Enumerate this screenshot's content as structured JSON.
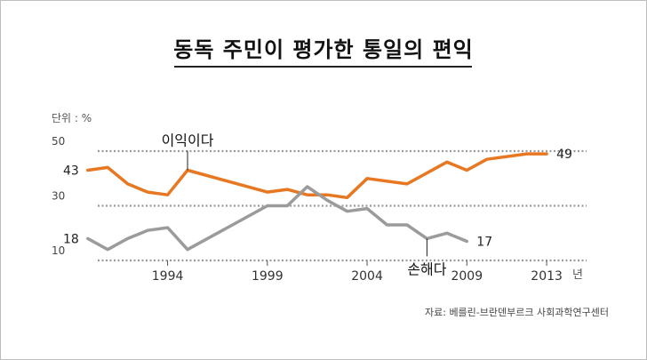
{
  "chart_data": {
    "type": "line",
    "title": "동독 주민이 평가한 통일의 편익",
    "unit_label": "단위 : %",
    "x_unit_label": "년",
    "source": "자료: 베를린-브란덴부르크 사회과학연구센터",
    "xlim": [
      1990.5,
      2015
    ],
    "ylim": [
      10,
      50
    ],
    "y_ticks": [
      {
        "value": 50,
        "label": "50"
      },
      {
        "value": 30,
        "label": "30"
      },
      {
        "value": 10,
        "label": "10"
      }
    ],
    "x_ticks": [
      {
        "value": 1994,
        "label": "1994"
      },
      {
        "value": 1999,
        "label": "1999"
      },
      {
        "value": 2004,
        "label": "2004"
      },
      {
        "value": 2009,
        "label": "2009"
      },
      {
        "value": 2013,
        "label": "2013"
      }
    ],
    "grid": true,
    "series": [
      {
        "name": "이익이다",
        "color": "#e87722",
        "points": [
          [
            1990,
            43
          ],
          [
            1991,
            44
          ],
          [
            1992,
            38
          ],
          [
            1993,
            35
          ],
          [
            1994,
            34
          ],
          [
            1995,
            43
          ],
          [
            1997,
            39
          ],
          [
            1999,
            35
          ],
          [
            2000,
            36
          ],
          [
            2001,
            34
          ],
          [
            2002,
            34
          ],
          [
            2003,
            33
          ],
          [
            2004,
            40
          ],
          [
            2006,
            38
          ],
          [
            2008,
            46
          ],
          [
            2009,
            43
          ],
          [
            2010,
            47
          ],
          [
            2012,
            49
          ],
          [
            2013,
            49
          ]
        ]
      },
      {
        "name": "손해다",
        "color": "#9b9b9b",
        "points": [
          [
            1990,
            18
          ],
          [
            1991,
            14
          ],
          [
            1992,
            18
          ],
          [
            1993,
            21
          ],
          [
            1994,
            22
          ],
          [
            1995,
            14
          ],
          [
            1997,
            22
          ],
          [
            1999,
            30
          ],
          [
            2000,
            30
          ],
          [
            2001,
            37
          ],
          [
            2002,
            32
          ],
          [
            2003,
            28
          ],
          [
            2004,
            29
          ],
          [
            2005,
            23
          ],
          [
            2006,
            23
          ],
          [
            2007,
            18
          ],
          [
            2008,
            20
          ],
          [
            2009,
            17
          ]
        ]
      }
    ],
    "start_labels": [
      "43",
      "18"
    ],
    "end_labels": [
      "49",
      "17"
    ],
    "annotations": [
      {
        "text": "이익이다",
        "series": 0
      },
      {
        "text": "손해다",
        "series": 1
      }
    ]
  }
}
